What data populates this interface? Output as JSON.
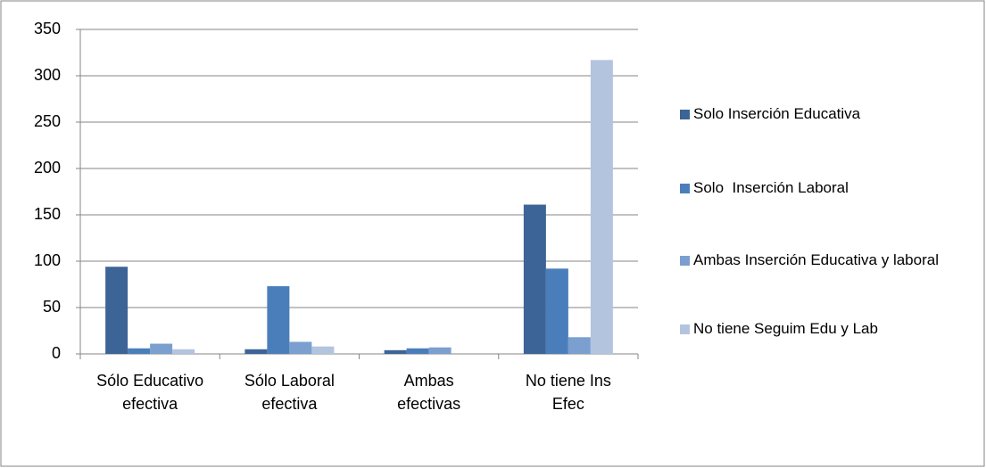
{
  "chart_data": {
    "type": "bar",
    "categories": [
      "Sólo Educativo efectiva",
      "Sólo Laboral efectiva",
      "Ambas efectivas",
      "No tiene Ins Efec"
    ],
    "series": [
      {
        "name": "Solo Inserción Educativa",
        "color": "#3c6496",
        "values": [
          94,
          5,
          4,
          161
        ]
      },
      {
        "name": "Solo  Inserción Laboral",
        "color": "#4a7ebb",
        "values": [
          6,
          73,
          6,
          92
        ]
      },
      {
        "name": "Ambas Inserción Educativa y laboral",
        "color": "#7b9fcf",
        "values": [
          11,
          13,
          7,
          18
        ]
      },
      {
        "name": "No tiene Seguim Edu y Lab",
        "color": "#b3c4df",
        "values": [
          5,
          8,
          0,
          317
        ]
      }
    ],
    "ylim": [
      0,
      350
    ],
    "yticks": [
      0,
      50,
      100,
      150,
      200,
      250,
      300,
      350
    ],
    "grid": true,
    "legend": "right"
  }
}
